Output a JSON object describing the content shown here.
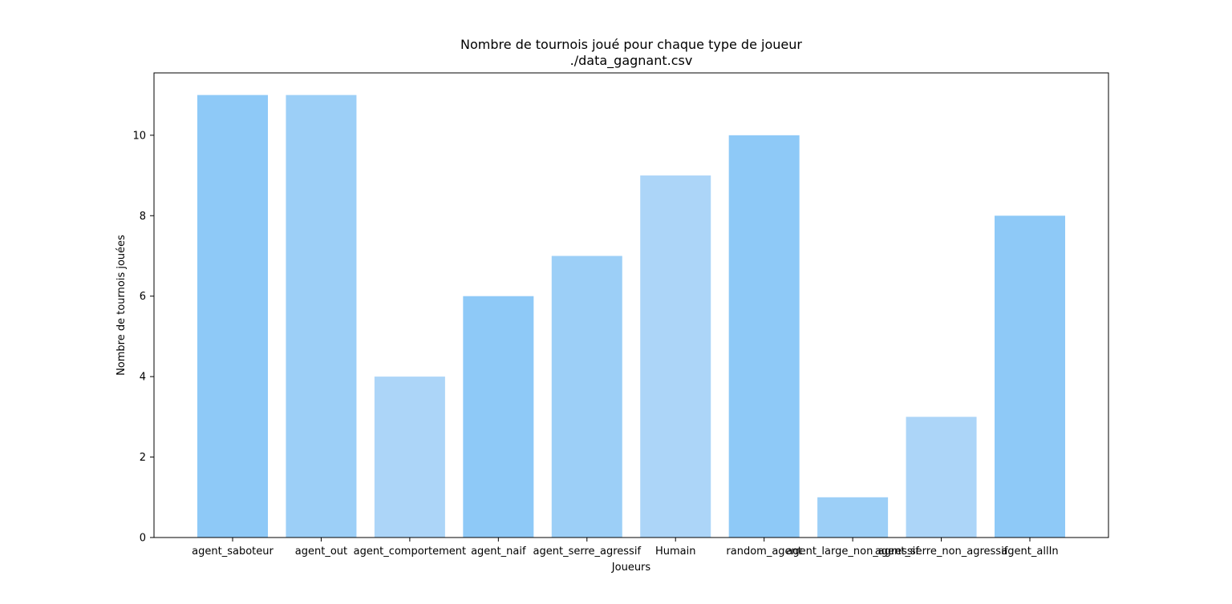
{
  "chart_data": {
    "type": "bar",
    "title": "Nombre de tournois joué pour chaque type de joueur",
    "subtitle": "./data_gagnant.csv",
    "xlabel": "Joueurs",
    "ylabel": "Nombre de tournois jouées",
    "categories": [
      "agent_saboteur",
      "agent_out",
      "agent_comportement",
      "agent_naif",
      "agent_serre_agressif",
      "Humain",
      "random_agent",
      "agent_large_non_agressif",
      "agent_serre_non_agressif",
      "agent_allIn"
    ],
    "values": [
      11,
      11,
      4,
      6,
      7,
      9,
      10,
      1,
      3,
      8
    ],
    "bar_colors": [
      "#8ec9f7",
      "#9ccff7",
      "#acd5f8",
      "#8ec9f7",
      "#9ccff7",
      "#acd5f8",
      "#8ec9f7",
      "#9ccff7",
      "#acd5f8",
      "#8ec9f7"
    ],
    "ylim": [
      0,
      11.55
    ],
    "yticks": [
      0,
      2,
      4,
      6,
      8,
      10
    ],
    "grid": false,
    "legend": "none"
  }
}
